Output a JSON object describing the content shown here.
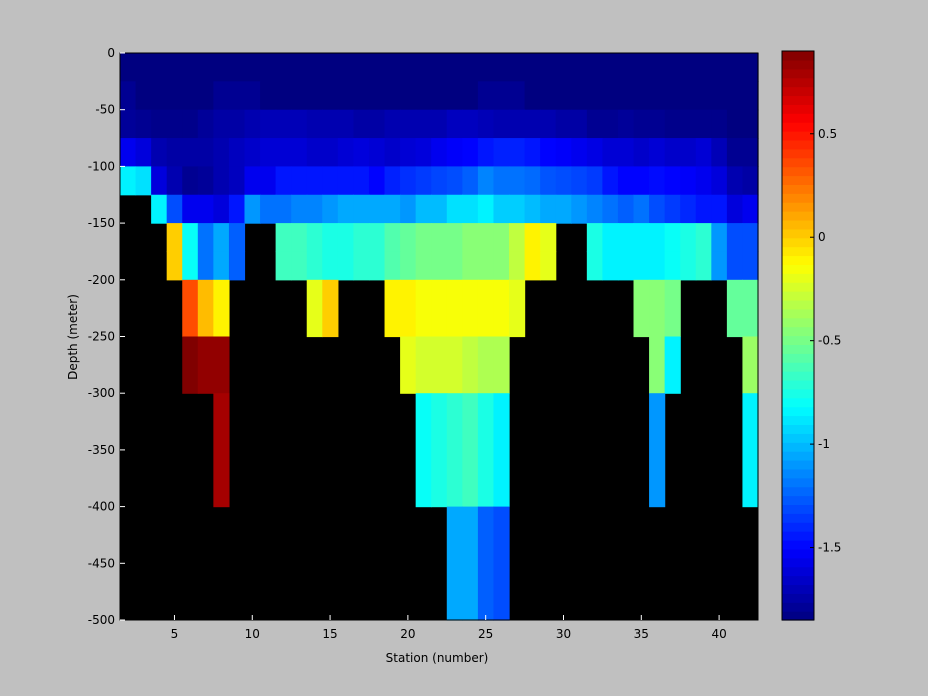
{
  "chart_data": {
    "type": "heatmap",
    "title": "",
    "xlabel": "Station (number)",
    "ylabel": "Depth (meter)",
    "xlim": [
      1.5,
      42.5
    ],
    "ylim": [
      -500,
      0
    ],
    "x_ticks": [
      5,
      10,
      15,
      20,
      25,
      30,
      35,
      40
    ],
    "y_ticks": [
      0,
      -50,
      -100,
      -150,
      -200,
      -250,
      -300,
      -350,
      -400,
      -450,
      -500
    ],
    "colorbar": {
      "colormap": "jet",
      "range": [
        -1.85,
        0.9
      ],
      "ticks": [
        0.5,
        0,
        -0.5,
        -1,
        -1.5
      ]
    },
    "background_color": "#000000",
    "stations": [
      2,
      3,
      4,
      5,
      6,
      7,
      8,
      9,
      10,
      11,
      12,
      13,
      14,
      15,
      16,
      17,
      18,
      19,
      20,
      21,
      22,
      23,
      24,
      25,
      26,
      27,
      28,
      29,
      30,
      31,
      32,
      33,
      34,
      35,
      36,
      37,
      38,
      39,
      40,
      41,
      42
    ],
    "layers": [
      {
        "top": 0,
        "bottom": -25,
        "values": {
          "all": -1.85
        }
      },
      {
        "top": -25,
        "bottom": -50,
        "values": {
          "2": -1.8,
          "3": -1.85,
          "4": -1.85,
          "5": -1.85,
          "6": -1.85,
          "7": -1.85,
          "8": -1.8,
          "9": -1.8,
          "10": -1.8,
          "11": -1.85,
          "all": -1.85,
          "25": -1.8,
          "26": -1.8,
          "27": -1.8
        }
      },
      {
        "top": -50,
        "bottom": -75,
        "values": {
          "2": -1.78,
          "3": -1.8,
          "4": -1.82,
          "5": -1.82,
          "6": -1.82,
          "7": -1.78,
          "8": -1.75,
          "9": -1.75,
          "10": -1.72,
          "11": -1.7,
          "12": -1.7,
          "13": -1.7,
          "14": -1.72,
          "15": -1.72,
          "16": -1.72,
          "17": -1.75,
          "18": -1.75,
          "19": -1.72,
          "20": -1.72,
          "21": -1.72,
          "22": -1.72,
          "23": -1.68,
          "24": -1.68,
          "25": -1.7,
          "26": -1.72,
          "27": -1.72,
          "28": -1.72,
          "29": -1.72,
          "30": -1.75,
          "31": -1.75,
          "32": -1.8,
          "33": -1.8,
          "34": -1.78,
          "35": -1.8,
          "36": -1.8,
          "37": -1.82,
          "38": -1.82,
          "39": -1.82,
          "40": -1.82,
          "41": -1.85,
          "42": -1.85
        }
      },
      {
        "top": -75,
        "bottom": -100,
        "values": {
          "2": -1.55,
          "3": -1.6,
          "4": -1.72,
          "5": -1.75,
          "6": -1.75,
          "7": -1.75,
          "8": -1.72,
          "9": -1.68,
          "10": -1.65,
          "11": -1.62,
          "12": -1.62,
          "13": -1.62,
          "14": -1.65,
          "15": -1.65,
          "16": -1.62,
          "17": -1.6,
          "18": -1.62,
          "19": -1.65,
          "20": -1.62,
          "21": -1.6,
          "22": -1.55,
          "23": -1.52,
          "24": -1.5,
          "25": -1.45,
          "26": -1.42,
          "27": -1.42,
          "28": -1.45,
          "29": -1.5,
          "30": -1.52,
          "31": -1.55,
          "32": -1.58,
          "33": -1.62,
          "34": -1.62,
          "35": -1.65,
          "36": -1.62,
          "37": -1.65,
          "38": -1.65,
          "39": -1.62,
          "40": -1.7,
          "41": -1.8,
          "42": -1.8
        }
      },
      {
        "top": -100,
        "bottom": -125,
        "values": {
          "2": -0.85,
          "3": -0.9,
          "4": -1.6,
          "5": -1.72,
          "6": -1.8,
          "7": -1.78,
          "8": -1.72,
          "9": -1.68,
          "10": -1.55,
          "11": -1.55,
          "12": -1.45,
          "13": -1.45,
          "14": -1.45,
          "15": -1.45,
          "16": -1.45,
          "17": -1.45,
          "18": -1.5,
          "19": -1.42,
          "20": -1.38,
          "21": -1.35,
          "22": -1.32,
          "23": -1.3,
          "24": -1.25,
          "25": -1.15,
          "26": -1.2,
          "27": -1.2,
          "28": -1.22,
          "29": -1.28,
          "30": -1.3,
          "31": -1.32,
          "32": -1.35,
          "33": -1.45,
          "34": -1.5,
          "35": -1.5,
          "36": -1.48,
          "37": -1.5,
          "38": -1.52,
          "39": -1.55,
          "40": -1.6,
          "41": -1.72,
          "42": -1.75
        }
      },
      {
        "top": -125,
        "bottom": -150,
        "values": {
          "2": null,
          "3": null,
          "4": -0.85,
          "5": -1.3,
          "6": -1.55,
          "7": -1.55,
          "8": -1.6,
          "9": -1.45,
          "10": -1.1,
          "11": -1.2,
          "12": -1.2,
          "13": -1.15,
          "14": -1.15,
          "15": -1.1,
          "16": -1.05,
          "17": -1.05,
          "18": -1.05,
          "19": -1.05,
          "20": -1.1,
          "21": -1.0,
          "22": -1.0,
          "23": -0.9,
          "24": -0.9,
          "25": -0.85,
          "26": -0.95,
          "27": -0.95,
          "28": -1.0,
          "29": -1.05,
          "30": -1.05,
          "31": -1.1,
          "32": -1.15,
          "33": -1.2,
          "34": -1.25,
          "35": -1.2,
          "36": -1.3,
          "37": -1.35,
          "38": -1.4,
          "39": -1.45,
          "40": -1.45,
          "41": -1.6,
          "42": -1.55
        }
      },
      {
        "top": -150,
        "bottom": -175,
        "values": {
          "2": null,
          "3": null,
          "4": null,
          "5": 0.0,
          "6": -0.8,
          "7": -1.2,
          "8": -1.05,
          "9": -1.25,
          "10": null,
          "11": null,
          "12": -0.65,
          "13": -0.65,
          "14": -0.7,
          "15": -0.75,
          "16": -0.75,
          "17": -0.7,
          "18": -0.7,
          "19": -0.6,
          "20": -0.55,
          "21": -0.5,
          "22": -0.5,
          "23": -0.5,
          "24": -0.45,
          "25": -0.45,
          "26": -0.45,
          "27": -0.3,
          "28": -0.1,
          "29": -0.2,
          "30": null,
          "31": null,
          "32": -0.75,
          "33": -0.85,
          "34": -0.85,
          "35": -0.85,
          "36": -0.85,
          "37": -0.8,
          "38": -0.75,
          "39": -0.7,
          "40": -1.1,
          "41": -1.3,
          "42": -1.3
        }
      },
      {
        "top": -175,
        "bottom": -200,
        "values": {
          "2": null,
          "3": null,
          "4": null,
          "5": 0.0,
          "6": -0.8,
          "7": -1.2,
          "8": -1.05,
          "9": -1.25,
          "10": null,
          "11": null,
          "12": -0.65,
          "13": -0.65,
          "14": -0.7,
          "15": -0.75,
          "16": -0.75,
          "17": -0.7,
          "18": -0.7,
          "19": -0.6,
          "20": -0.55,
          "21": -0.5,
          "22": -0.5,
          "23": -0.5,
          "24": -0.45,
          "25": -0.45,
          "26": -0.45,
          "27": -0.3,
          "28": -0.1,
          "29": -0.2,
          "30": null,
          "31": null,
          "32": -0.75,
          "33": -0.85,
          "34": -0.85,
          "35": -0.85,
          "36": -0.85,
          "37": -0.8,
          "38": -0.75,
          "39": -0.7,
          "40": -1.1,
          "41": -1.3,
          "42": -1.3
        }
      },
      {
        "top": -200,
        "bottom": -250,
        "values": {
          "6": 0.35,
          "7": 0.05,
          "8": -0.1,
          "14": -0.2,
          "15": 0.0,
          "19": -0.1,
          "20": -0.1,
          "21": -0.15,
          "22": -0.15,
          "23": -0.15,
          "24": -0.15,
          "25": -0.15,
          "26": -0.15,
          "27": -0.2,
          "35": -0.45,
          "36": -0.45,
          "37": -0.5,
          "41": -0.55,
          "42": -0.55
        }
      },
      {
        "top": -250,
        "bottom": -300,
        "values": {
          "6": 0.9,
          "7": 0.85,
          "8": 0.85,
          "20": -0.2,
          "21": -0.25,
          "22": -0.25,
          "23": -0.25,
          "24": -0.3,
          "25": -0.35,
          "26": -0.35,
          "36": -0.45,
          "37": -0.85,
          "42": -0.4
        }
      },
      {
        "top": -300,
        "bottom": -400,
        "values": {
          "8": 0.8,
          "21": -0.8,
          "22": -0.75,
          "23": -0.7,
          "24": -0.65,
          "25": -0.75,
          "26": -0.85,
          "36": -1.1,
          "42": -0.85
        }
      },
      {
        "top": -400,
        "bottom": -500,
        "values": {
          "23": -1.05,
          "24": -1.05,
          "25": -1.25,
          "26": -1.3
        }
      }
    ]
  }
}
